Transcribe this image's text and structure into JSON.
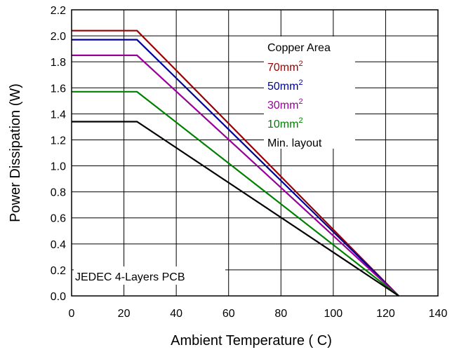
{
  "chart_data": {
    "type": "line",
    "xlabel": "Ambient Temperature ( C)",
    "ylabel": "Power Dissipation (W)",
    "xlim": [
      0,
      140
    ],
    "ylim": [
      0,
      2.2
    ],
    "x_ticks": [
      "0",
      "20",
      "40",
      "60",
      "80",
      "100",
      "120",
      "140"
    ],
    "y_ticks": [
      "0.0",
      "0.2",
      "0.4",
      "0.6",
      "0.8",
      "1.0",
      "1.2",
      "1.4",
      "1.6",
      "1.8",
      "2.0",
      "2.2"
    ],
    "grid": true,
    "legend_title": "Copper Area",
    "legend_placement": "top-right",
    "annotation": "JEDEC 4-Layers PCB",
    "series": [
      {
        "name": "70mm",
        "superscript": "2",
        "color": "#990000",
        "x": [
          0,
          25,
          125
        ],
        "y": [
          2.04,
          2.04,
          0
        ]
      },
      {
        "name": "50mm",
        "superscript": "2",
        "color": "#000099",
        "x": [
          0,
          25,
          125
        ],
        "y": [
          1.97,
          1.97,
          0
        ]
      },
      {
        "name": "30mm",
        "superscript": "2",
        "color": "#990099",
        "x": [
          0,
          25,
          125
        ],
        "y": [
          1.85,
          1.85,
          0
        ]
      },
      {
        "name": "10mm",
        "superscript": "2",
        "color": "#008000",
        "x": [
          0,
          25,
          125
        ],
        "y": [
          1.57,
          1.57,
          0
        ]
      },
      {
        "name": "Min. layout",
        "superscript": "",
        "color": "#000000",
        "x": [
          0,
          25,
          125
        ],
        "y": [
          1.34,
          1.34,
          0
        ]
      }
    ]
  }
}
